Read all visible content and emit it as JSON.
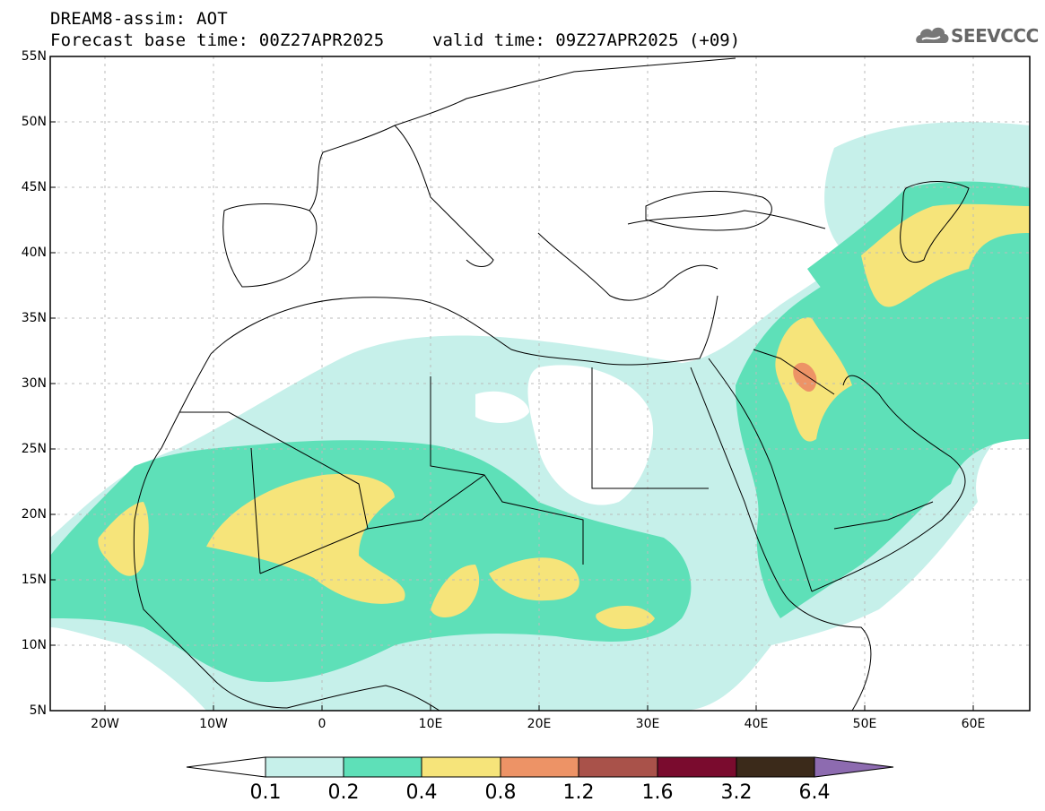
{
  "header": {
    "title_line1": "DREAM8-assim: AOT",
    "title_line2": "Forecast base time: 00Z27APR2025",
    "valid_time": "valid time: 09Z27APR2025 (+09)",
    "logo_text": "SEEVCCC"
  },
  "map": {
    "lat_labels": [
      "55N",
      "50N",
      "45N",
      "40N",
      "35N",
      "30N",
      "25N",
      "20N",
      "15N",
      "10N",
      "5N"
    ],
    "lon_labels": [
      "20W",
      "10W",
      "0",
      "10E",
      "20E",
      "30E",
      "40E",
      "50E",
      "60E"
    ],
    "extent": {
      "lon_min": -25,
      "lon_max": 65,
      "lat_min": 5,
      "lat_max": 55
    }
  },
  "colorbar": {
    "labels": [
      "0.1",
      "0.2",
      "0.4",
      "0.8",
      "1.2",
      "1.6",
      "3.2",
      "6.4"
    ],
    "colors": [
      "#c6f0ea",
      "#5ee0b8",
      "#f6e47a",
      "#ed9366",
      "#a9524a",
      "#7a0b2e",
      "#3b2a1a",
      "#8d6bb0"
    ]
  }
}
